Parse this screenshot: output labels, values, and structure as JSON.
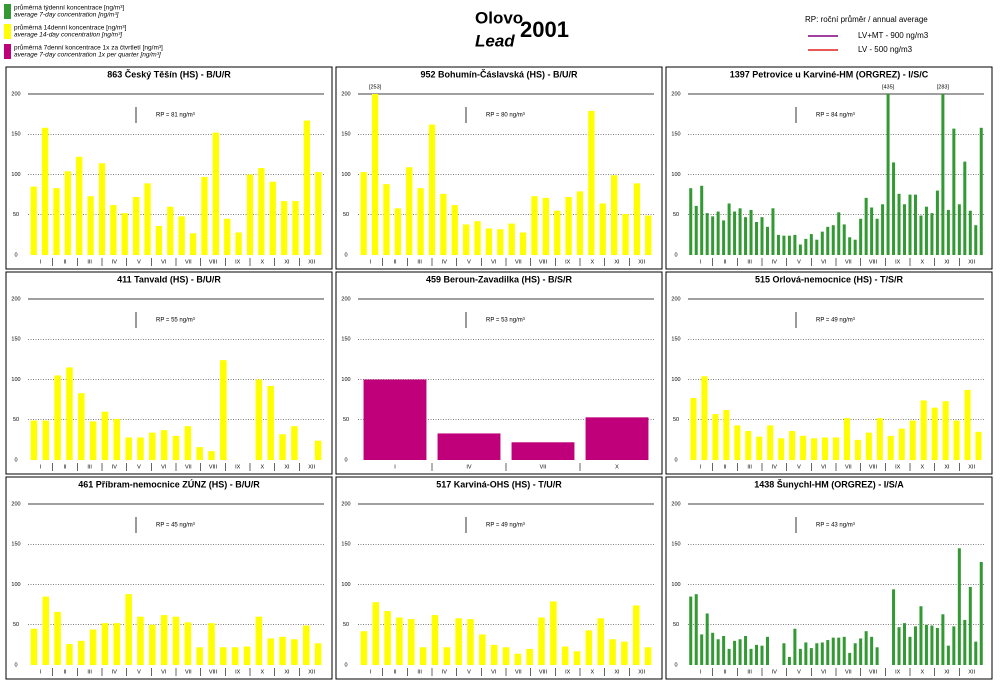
{
  "header": {
    "title": "Olovo",
    "subtitle": "Lead",
    "year": "2001",
    "legend": [
      {
        "color": "#339933",
        "label": "průměrná týdenní koncentrace [ng/m³]",
        "label_en": "average 7-day concentration [ng/m³]"
      },
      {
        "color": "#ffff00",
        "label": "průměrná 14denní koncentrace [ng/m³]",
        "label_en": "average 14-day concentration [ng/m³]"
      },
      {
        "color": "#c0007a",
        "label": "průměrná 7denní koncentrace 1x za čtvrtletí [ng/m³]",
        "label_en": "average 7-day concentration 1x per quarter [ng/m³]"
      }
    ],
    "rp_legend": "RP:  roční průměr / annual average",
    "limits": [
      {
        "label": "LV+MT  - 900 ng/m3",
        "color": "#800080"
      },
      {
        "label": "LV     - 500 ng/m3",
        "color": "#e02020"
      }
    ]
  },
  "chart_data": [
    {
      "type": "bar",
      "title": "863 Český Těšín (HS) - B/U/R",
      "color": "#ffff00",
      "rp_label": "RP = 81 ng/m³",
      "ylim": [
        0,
        200
      ],
      "yticks": [
        0,
        50,
        100,
        150,
        200
      ],
      "months": [
        "I",
        "II",
        "III",
        "IV",
        "V",
        "VI",
        "VII",
        "VIII",
        "IX",
        "X",
        "XI",
        "XII"
      ],
      "values": [
        85,
        158,
        83,
        104,
        122,
        73,
        114,
        62,
        52,
        72,
        89,
        36,
        60,
        48,
        27,
        97,
        152,
        45,
        28,
        100,
        108,
        91,
        67,
        67,
        167,
        103
      ]
    },
    {
      "type": "bar",
      "title": "952 Bohumín-Čáslavská (HS) - B/U/R",
      "color": "#ffff00",
      "rp_label": "RP = 80 ng/m³",
      "ylim": [
        0,
        200
      ],
      "yticks": [
        0,
        50,
        100,
        150,
        200
      ],
      "months": [
        "I",
        "II",
        "III",
        "IV",
        "V",
        "VI",
        "VII",
        "VIII",
        "IX",
        "X",
        "XI",
        "XII"
      ],
      "values": [
        103,
        253,
        88,
        58,
        109,
        83,
        162,
        76,
        62,
        38,
        42,
        33,
        32,
        39,
        28,
        73,
        71,
        55,
        72,
        79,
        179,
        64,
        99,
        51,
        89,
        49
      ],
      "value_labels": [
        null,
        "[253]",
        null,
        null,
        null,
        null,
        null,
        null,
        null,
        null,
        null,
        null,
        null,
        null,
        null,
        null,
        null,
        null,
        null,
        null,
        null,
        null,
        null,
        null,
        null,
        null
      ]
    },
    {
      "type": "bar",
      "title": "1397 Petrovice u Karviné-HM (ORGREZ) - I/S/C",
      "color": "#339933",
      "rp_label": "RP = 84 ng/m³",
      "ylim": [
        0,
        200
      ],
      "yticks": [
        0,
        50,
        100,
        150,
        200
      ],
      "months": [
        "I",
        "II",
        "III",
        "IV",
        "V",
        "VI",
        "VII",
        "VIII",
        "IX",
        "X",
        "XI",
        "XII"
      ],
      "values": [
        83,
        61,
        86,
        52,
        48,
        54,
        43,
        64,
        54,
        58,
        47,
        56,
        41,
        47,
        35,
        58,
        25,
        24,
        24,
        25,
        13,
        20,
        26,
        19,
        29,
        35,
        37,
        53,
        38,
        22,
        19,
        45,
        71,
        59,
        45,
        63,
        435,
        115,
        76,
        63,
        75,
        75,
        49,
        60,
        52,
        80,
        283,
        56,
        157,
        63,
        116,
        55,
        37,
        158
      ],
      "value_labels": [
        null,
        null,
        null,
        null,
        null,
        null,
        null,
        null,
        null,
        null,
        null,
        null,
        null,
        null,
        null,
        null,
        null,
        null,
        null,
        null,
        null,
        null,
        null,
        null,
        null,
        null,
        null,
        null,
        null,
        null,
        null,
        null,
        null,
        null,
        null,
        null,
        "[435]",
        null,
        null,
        null,
        null,
        null,
        null,
        null,
        null,
        null,
        "[283]",
        null,
        null,
        null,
        null,
        null,
        null,
        null
      ]
    },
    {
      "type": "bar",
      "title": "411 Tanvald (HS) - B/U/R",
      "color": "#ffff00",
      "rp_label": "RP = 55 ng/m³",
      "ylim": [
        0,
        200
      ],
      "yticks": [
        0,
        50,
        100,
        150,
        200
      ],
      "months": [
        "I",
        "II",
        "III",
        "IV",
        "V",
        "VI",
        "VII",
        "VIII",
        "IX",
        "X",
        "XI",
        "XII"
      ],
      "values": [
        49,
        49,
        105,
        115,
        83,
        48,
        60,
        51,
        28,
        28,
        34,
        37,
        30,
        42,
        16,
        11,
        124,
        null,
        null,
        100,
        92,
        32,
        42,
        null,
        24
      ]
    },
    {
      "type": "bar",
      "title": "459 Beroun-Zavadilka (HS) - B/S/R",
      "color": "#c0007a",
      "rp_label": "RP = 53 ng/m³",
      "ylim": [
        0,
        200
      ],
      "yticks": [
        0,
        50,
        100,
        150,
        200
      ],
      "months": [
        "I",
        "IV",
        "VII",
        "X"
      ],
      "values": [
        100,
        33,
        22,
        53
      ]
    },
    {
      "type": "bar",
      "title": "515 Orlová-nemocnice (HS) - T/S/R",
      "color": "#ffff00",
      "rp_label": "RP = 49 ng/m³",
      "ylim": [
        0,
        200
      ],
      "yticks": [
        0,
        50,
        100,
        150,
        200
      ],
      "months": [
        "I",
        "II",
        "III",
        "IV",
        "V",
        "VI",
        "VII",
        "VIII",
        "IX",
        "X",
        "XI",
        "XII"
      ],
      "values": [
        77,
        104,
        57,
        62,
        43,
        36,
        29,
        43,
        27,
        36,
        30,
        27,
        28,
        28,
        52,
        25,
        34,
        52,
        30,
        39,
        49,
        74,
        65,
        73,
        49,
        87,
        35
      ]
    },
    {
      "type": "bar",
      "title": "461 Příbram-nemocnice ZÚNZ (HS) - B/U/R",
      "color": "#ffff00",
      "rp_label": "RP = 45 ng/m³",
      "ylim": [
        0,
        200
      ],
      "yticks": [
        0,
        50,
        100,
        150,
        200
      ],
      "months": [
        "I",
        "II",
        "III",
        "IV",
        "V",
        "VI",
        "VII",
        "VIII",
        "IX",
        "X",
        "XI",
        "XII"
      ],
      "values": [
        45,
        85,
        66,
        26,
        30,
        44,
        52,
        52,
        88,
        60,
        50,
        62,
        60,
        53,
        22,
        52,
        22,
        22,
        23,
        60,
        33,
        35,
        32,
        49,
        27
      ]
    },
    {
      "type": "bar",
      "title": "517 Karviná-OHS (HS) - T/U/R",
      "color": "#ffff00",
      "rp_label": "RP = 49 ng/m³",
      "ylim": [
        0,
        200
      ],
      "yticks": [
        0,
        50,
        100,
        150,
        200
      ],
      "months": [
        "I",
        "II",
        "III",
        "IV",
        "V",
        "VI",
        "VII",
        "VIII",
        "IX",
        "X",
        "XI",
        "XII"
      ],
      "values": [
        42,
        78,
        67,
        59,
        57,
        22,
        62,
        22,
        58,
        57,
        38,
        25,
        22,
        14,
        20,
        59,
        79,
        23,
        17,
        43,
        58,
        32,
        29,
        74,
        22
      ]
    },
    {
      "type": "bar",
      "title": "1438 Šunychl-HM (ORGREZ) - I/S/A",
      "color": "#339933",
      "rp_label": "RP = 43 ng/m³",
      "ylim": [
        0,
        200
      ],
      "yticks": [
        0,
        50,
        100,
        150,
        200
      ],
      "months": [
        "I",
        "II",
        "III",
        "IV",
        "V",
        "VI",
        "VII",
        "VIII",
        "IX",
        "X",
        "XI",
        "XII"
      ],
      "values": [
        85,
        88,
        38,
        64,
        40,
        32,
        36,
        20,
        30,
        32,
        36,
        20,
        25,
        24,
        35,
        null,
        null,
        27,
        10,
        45,
        20,
        28,
        21,
        27,
        28,
        31,
        34,
        34,
        35,
        15,
        27,
        33,
        42,
        35,
        22,
        null,
        null,
        94,
        47,
        52,
        35,
        48,
        73,
        50,
        49,
        46,
        63,
        24,
        48,
        145,
        56,
        97,
        29,
        128
      ]
    }
  ]
}
